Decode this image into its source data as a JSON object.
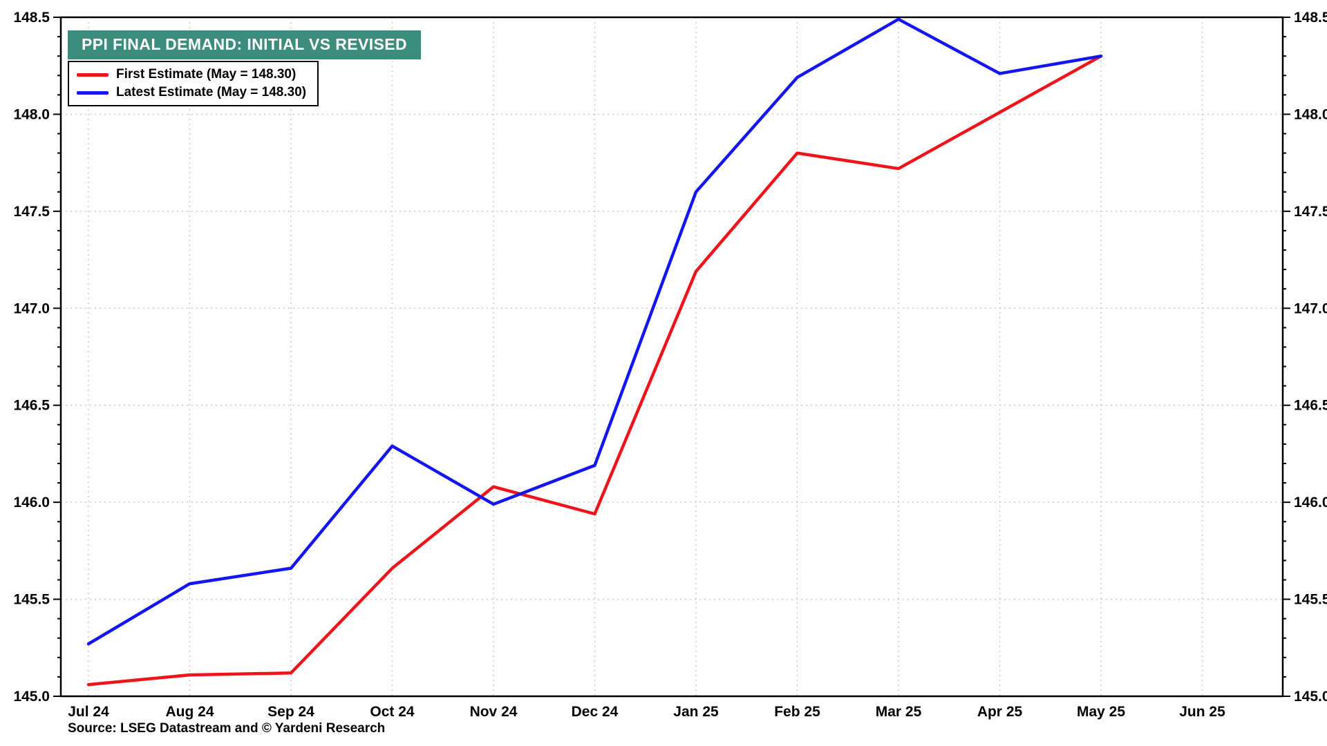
{
  "chart_data": {
    "type": "line",
    "title": "PPI FINAL DEMAND: INITIAL VS REVISED",
    "source": "Source: LSEG Datastream and © Yardeni Research",
    "xlabel": "",
    "ylabel": "",
    "x_categories": [
      "Jul 24",
      "Aug 24",
      "Sep 24",
      "Oct 24",
      "Nov 24",
      "Dec 24",
      "Jan 25",
      "Feb 25",
      "Mar 25",
      "Apr 25",
      "May 25",
      "Jun 25"
    ],
    "ylim": [
      145.0,
      148.5
    ],
    "y_ticks": [
      145.0,
      145.5,
      146.0,
      146.5,
      147.0,
      147.5,
      148.0,
      148.5
    ],
    "grid": true,
    "legend_position": "top-left",
    "series": [
      {
        "name": "First Estimate (May = 148.30)",
        "color": "#ee1419",
        "values": [
          145.06,
          145.11,
          145.12,
          145.66,
          146.08,
          145.94,
          147.19,
          147.8,
          147.72,
          148.01,
          148.3,
          null
        ]
      },
      {
        "name": "Latest Estimate (May = 148.30)",
        "color": "#1316ee",
        "values": [
          145.27,
          145.58,
          145.66,
          146.29,
          145.99,
          146.19,
          147.6,
          148.19,
          148.49,
          148.21,
          148.3,
          null
        ]
      }
    ]
  },
  "colors": {
    "title_bg": "#3c8d7d",
    "title_text": "#ffffff",
    "grid": "#c9c9c9",
    "axis": "#000000",
    "background": "#ffffff"
  }
}
